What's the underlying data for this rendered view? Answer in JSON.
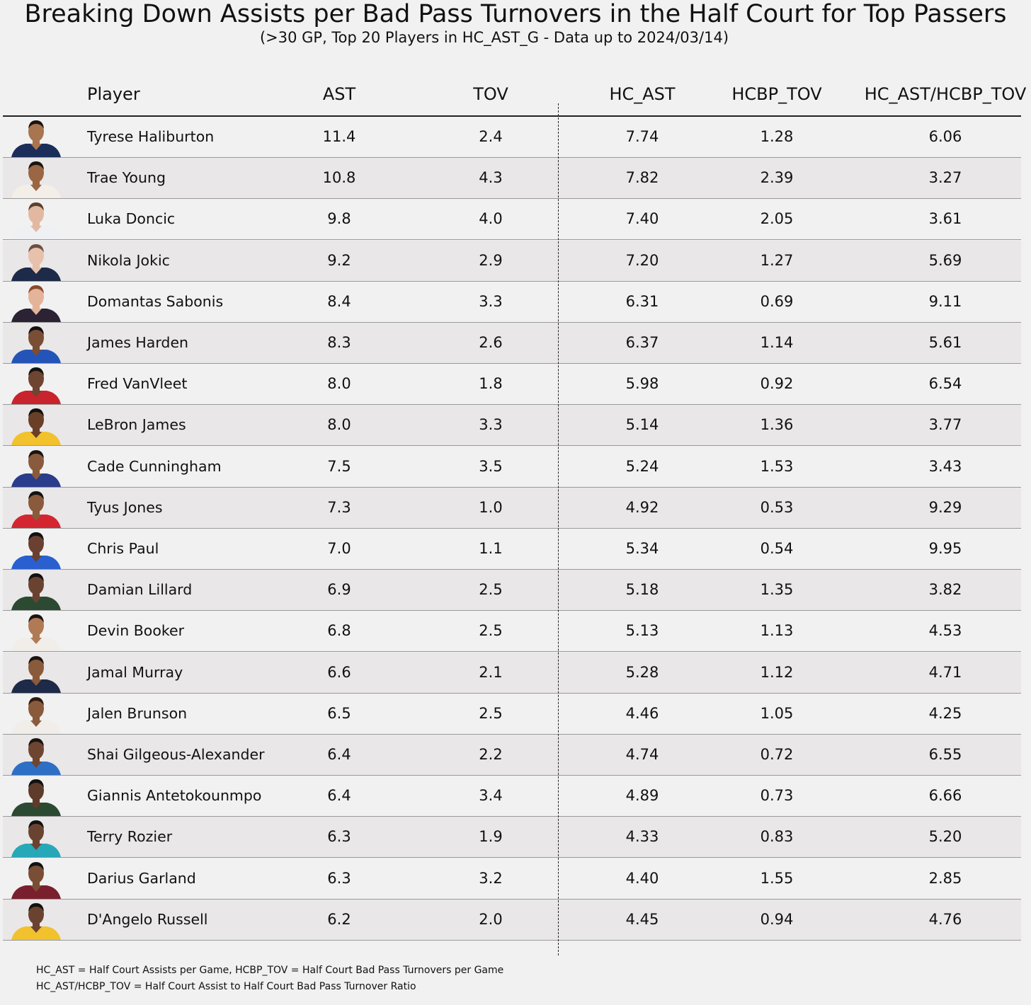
{
  "chart_data": {
    "type": "table",
    "title": "Breaking Down Assists per Bad Pass Turnovers in the Half Court for Top Passers",
    "subtitle": "(>30 GP, Top 20 Players in HC_AST_G - Data up to 2024/03/14)",
    "columns": [
      "Player",
      "AST",
      "TOV",
      "HC_AST",
      "HCBP_TOV",
      "HC_AST/HCBP_TOV"
    ],
    "rows": [
      {
        "player": "Tyrese Haliburton",
        "ast": "11.4",
        "tov": "2.4",
        "hc_ast": "7.74",
        "hcbp_tov": "1.28",
        "ratio": "6.06",
        "jersey_color": "#1b2e5a",
        "skin": "#a8754f",
        "hair": "#1a1410"
      },
      {
        "player": "Trae Young",
        "ast": "10.8",
        "tov": "4.3",
        "hc_ast": "7.82",
        "hcbp_tov": "2.39",
        "ratio": "3.27",
        "jersey_color": "#f3efe8",
        "skin": "#9a6643",
        "hair": "#1a1410"
      },
      {
        "player": "Luka Doncic",
        "ast": "9.8",
        "tov": "4.0",
        "hc_ast": "7.40",
        "hcbp_tov": "2.05",
        "ratio": "3.61",
        "jersey_color": "#eef0f3",
        "skin": "#e2b9a0",
        "hair": "#5a4030"
      },
      {
        "player": "Nikola Jokic",
        "ast": "9.2",
        "tov": "2.9",
        "hc_ast": "7.20",
        "hcbp_tov": "1.27",
        "ratio": "5.69",
        "jersey_color": "#1d2a48",
        "skin": "#e7c1ab",
        "hair": "#6b5040"
      },
      {
        "player": "Domantas Sabonis",
        "ast": "8.4",
        "tov": "3.3",
        "hc_ast": "6.31",
        "hcbp_tov": "0.69",
        "ratio": "9.11",
        "jersey_color": "#2b2233",
        "skin": "#e3b39a",
        "hair": "#8a4a2a"
      },
      {
        "player": "James Harden",
        "ast": "8.3",
        "tov": "2.6",
        "hc_ast": "6.37",
        "hcbp_tov": "1.14",
        "ratio": "5.61",
        "jersey_color": "#2454b8",
        "skin": "#7a4d35",
        "hair": "#111111"
      },
      {
        "player": "Fred VanVleet",
        "ast": "8.0",
        "tov": "1.8",
        "hc_ast": "5.98",
        "hcbp_tov": "0.92",
        "ratio": "6.54",
        "jersey_color": "#c9232e",
        "skin": "#6e4530",
        "hair": "#111111"
      },
      {
        "player": "LeBron James",
        "ast": "8.0",
        "tov": "3.3",
        "hc_ast": "5.14",
        "hcbp_tov": "1.36",
        "ratio": "3.77",
        "jersey_color": "#f2c12e",
        "skin": "#6a3f28",
        "hair": "#111111"
      },
      {
        "player": "Cade Cunningham",
        "ast": "7.5",
        "tov": "3.5",
        "hc_ast": "5.24",
        "hcbp_tov": "1.53",
        "ratio": "3.43",
        "jersey_color": "#2a3c8c",
        "skin": "#8a5a3c",
        "hair": "#1a1410"
      },
      {
        "player": "Tyus Jones",
        "ast": "7.3",
        "tov": "1.0",
        "hc_ast": "4.92",
        "hcbp_tov": "0.53",
        "ratio": "9.29",
        "jersey_color": "#d32630",
        "skin": "#8a5a3c",
        "hair": "#111111"
      },
      {
        "player": "Chris Paul",
        "ast": "7.0",
        "tov": "1.1",
        "hc_ast": "5.34",
        "hcbp_tov": "0.54",
        "ratio": "9.95",
        "jersey_color": "#2a5fd0",
        "skin": "#6a4030",
        "hair": "#111111"
      },
      {
        "player": "Damian Lillard",
        "ast": "6.9",
        "tov": "2.5",
        "hc_ast": "5.18",
        "hcbp_tov": "1.35",
        "ratio": "3.82",
        "jersey_color": "#2c4a32",
        "skin": "#6a4330",
        "hair": "#111111"
      },
      {
        "player": "Devin Booker",
        "ast": "6.8",
        "tov": "2.5",
        "hc_ast": "5.13",
        "hcbp_tov": "1.13",
        "ratio": "4.53",
        "jersey_color": "#f1ede8",
        "skin": "#b07a55",
        "hair": "#1a1410"
      },
      {
        "player": "Jamal Murray",
        "ast": "6.6",
        "tov": "2.1",
        "hc_ast": "5.28",
        "hcbp_tov": "1.12",
        "ratio": "4.71",
        "jersey_color": "#1d2a48",
        "skin": "#8a5a3c",
        "hair": "#1a1410"
      },
      {
        "player": "Jalen Brunson",
        "ast": "6.5",
        "tov": "2.5",
        "hc_ast": "4.46",
        "hcbp_tov": "1.05",
        "ratio": "4.25",
        "jersey_color": "#f1ede8",
        "skin": "#8a5a3c",
        "hair": "#2a1a10"
      },
      {
        "player": "Shai Gilgeous-Alexander",
        "ast": "6.4",
        "tov": "2.2",
        "hc_ast": "4.74",
        "hcbp_tov": "0.72",
        "ratio": "6.55",
        "jersey_color": "#2e6fc6",
        "skin": "#6e4530",
        "hair": "#1a1410"
      },
      {
        "player": "Giannis Antetokounmpo",
        "ast": "6.4",
        "tov": "3.4",
        "hc_ast": "4.89",
        "hcbp_tov": "0.73",
        "ratio": "6.66",
        "jersey_color": "#2c4a32",
        "skin": "#5e3b2a",
        "hair": "#111111"
      },
      {
        "player": "Terry Rozier",
        "ast": "6.3",
        "tov": "1.9",
        "hc_ast": "4.33",
        "hcbp_tov": "0.83",
        "ratio": "5.20",
        "jersey_color": "#27a8b8",
        "skin": "#6a4330",
        "hair": "#111111"
      },
      {
        "player": "Darius Garland",
        "ast": "6.3",
        "tov": "3.2",
        "hc_ast": "4.40",
        "hcbp_tov": "1.55",
        "ratio": "2.85",
        "jersey_color": "#7a1f2e",
        "skin": "#7a4d35",
        "hair": "#111111"
      },
      {
        "player": "D'Angelo Russell",
        "ast": "6.2",
        "tov": "2.0",
        "hc_ast": "4.45",
        "hcbp_tov": "0.94",
        "ratio": "4.76",
        "jersey_color": "#f2c12e",
        "skin": "#6a4330",
        "hair": "#111111"
      }
    ],
    "footnotes": [
      "HC_AST = Half Court Assists per Game, HCBP_TOV = Half Court Bad Pass Turnovers per Game",
      "HC_AST/HCBP_TOV = Half Court Assist to Half Court Bad Pass Turnover Ratio"
    ],
    "colors": {
      "background": "#f1f1f1",
      "alt_row": "#e9e7e7",
      "rule": "#9a9a9a"
    }
  }
}
